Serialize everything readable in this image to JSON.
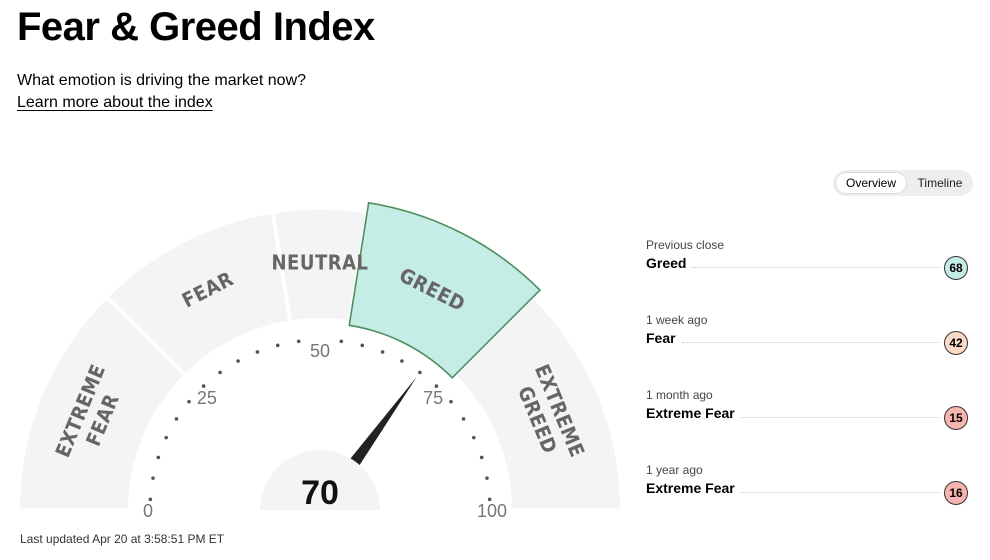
{
  "header": {
    "title": "Fear & Greed Index",
    "subtitle": "What emotion is driving the market now?",
    "learn_more": "Learn more about the index"
  },
  "view_toggle": {
    "overview_label": "Overview",
    "timeline_label": "Timeline",
    "selected": "Overview"
  },
  "gauge": {
    "value": "70",
    "value_numeric": 70,
    "scale_min": 0,
    "scale_max": 100,
    "active_segment": "GREED",
    "segments": [
      {
        "from": 0,
        "to": 25,
        "lines": [
          "EXTREME",
          "FEAR"
        ]
      },
      {
        "from": 25,
        "to": 45,
        "lines": [
          "FEAR"
        ]
      },
      {
        "from": 45,
        "to": 55,
        "lines": [
          "NEUTRAL"
        ]
      },
      {
        "from": 55,
        "to": 75,
        "lines": [
          "GREED"
        ]
      },
      {
        "from": 75,
        "to": 100,
        "lines": [
          "EXTREME",
          "GREED"
        ]
      }
    ],
    "tick_labels": [
      "0",
      "25",
      "50",
      "75",
      "100"
    ],
    "colors": {
      "segment": "#f4f4f4",
      "active_fill": "#c6ece6",
      "active_stroke": "#4f8f5f",
      "needle": "#222222"
    }
  },
  "last_updated": "Last updated Apr 20 at 3:58:51 PM ET",
  "history": [
    {
      "when": "Previous close",
      "rating": "Greed",
      "score": "68",
      "color": "#c6ece6"
    },
    {
      "when": "1 week ago",
      "rating": "Fear",
      "score": "42",
      "color": "#fcd9c6"
    },
    {
      "when": "1 month ago",
      "rating": "Extreme Fear",
      "score": "15",
      "color": "#f6b3b0"
    },
    {
      "when": "1 year ago",
      "rating": "Extreme Fear",
      "score": "16",
      "color": "#f6b3b0"
    }
  ]
}
